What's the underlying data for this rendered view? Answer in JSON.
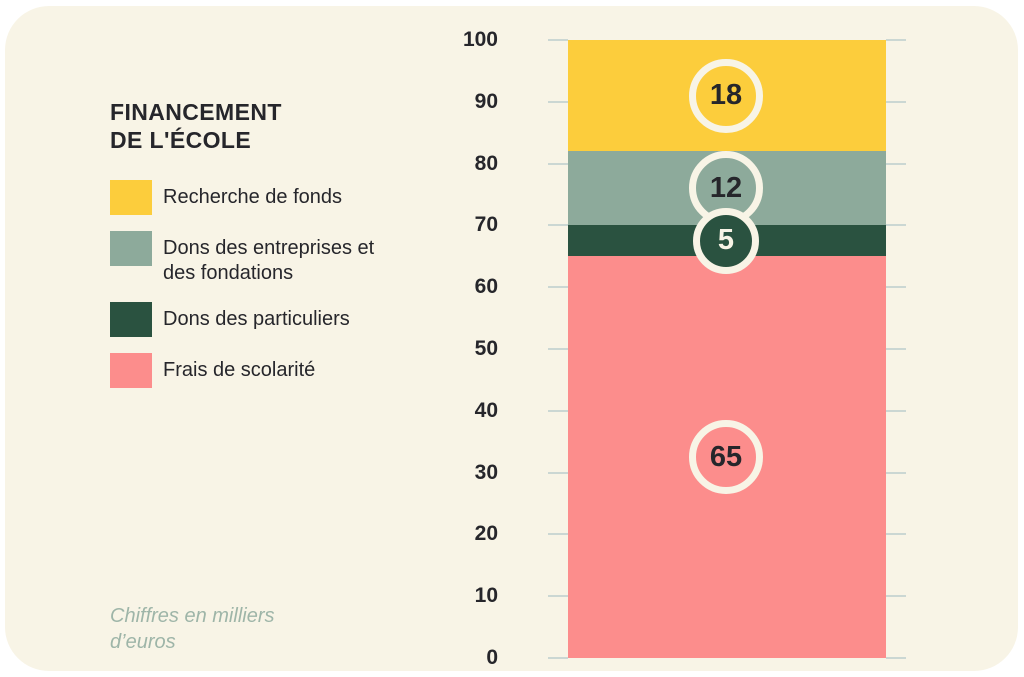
{
  "header": {
    "title_line1": "FINANCEMENT",
    "title_line2": "DE L'ÉCOLE"
  },
  "footnote": {
    "line1": "Chiffres en milliers",
    "line2": "d’euros"
  },
  "chart_data": {
    "type": "bar",
    "subtype": "stacked-vertical-single-bar",
    "title": "FINANCEMENT DE L'ÉCOLE",
    "unit_note": "Chiffres en milliers d’euros",
    "ylim": [
      0,
      100
    ],
    "yticks": [
      0,
      10,
      20,
      30,
      40,
      50,
      60,
      70,
      80,
      90,
      100
    ],
    "grid": "short tick marks on both sides of bar",
    "legend_position": "left",
    "total": 100,
    "segments_top_to_bottom": [
      {
        "label": "Recherche de fonds",
        "value": 18,
        "color": "#FCCD3C",
        "badge_text_color": "#26262B"
      },
      {
        "label": "Dons des entreprises et des fondations",
        "value": 12,
        "color": "#8DAA9B",
        "badge_text_color": "#26262B"
      },
      {
        "label": "Dons des particuliers",
        "value": 5,
        "color": "#2A5240",
        "badge_text_color": "#F8F4E6"
      },
      {
        "label": "Frais de scolarité",
        "value": 65,
        "color": "#FC8D8C",
        "badge_text_color": "#26262B"
      }
    ]
  },
  "colors": {
    "page_bg": "#FFFFFF",
    "card_bg": "#F8F4E6",
    "text_dark": "#26262B",
    "axis_tick": "#CBD7D3",
    "footnote_text": "#9EB5A8",
    "badge_ring": "#F8F4E6"
  }
}
